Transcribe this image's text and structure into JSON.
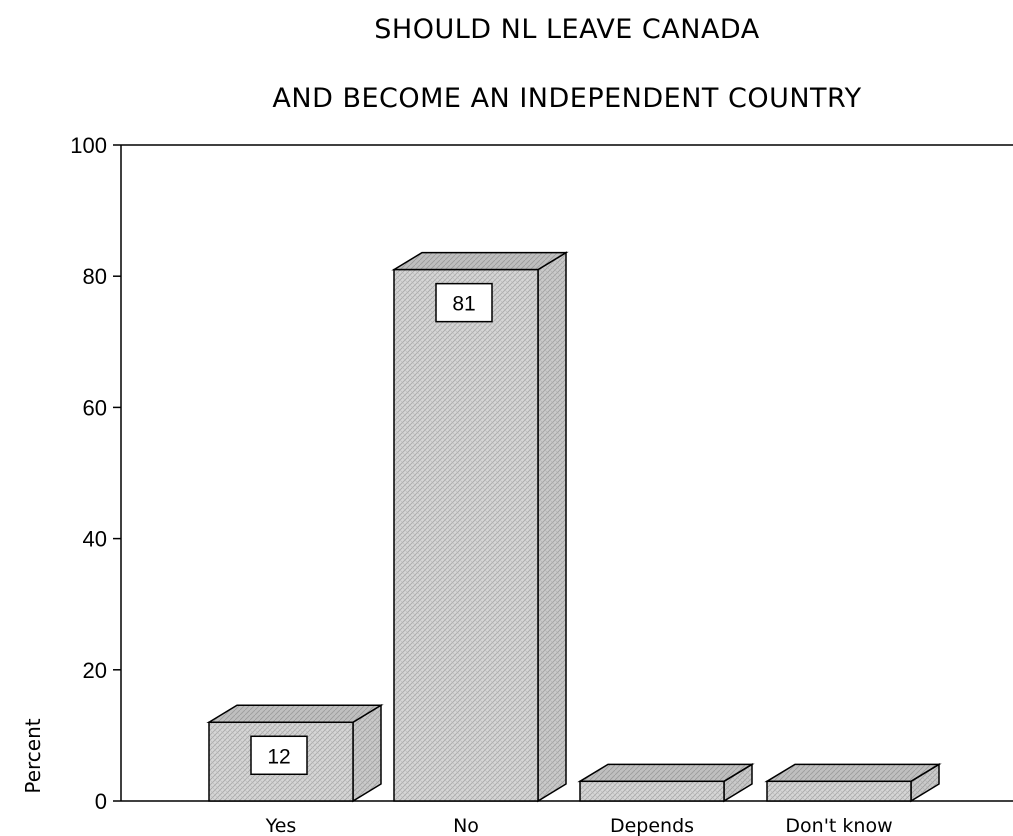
{
  "chart_data": {
    "type": "bar",
    "title_lines": [
      "SHOULD NL LEAVE CANADA",
      "AND BECOME AN INDEPENDENT COUNTRY"
    ],
    "categories": [
      "Yes",
      "No",
      "Depends",
      "Don't know"
    ],
    "values": [
      12,
      81,
      3,
      3
    ],
    "data_labels": [
      "12",
      "81",
      "",
      ""
    ],
    "xlabel": "",
    "ylabel": "Percent",
    "ylim": [
      0,
      100
    ],
    "yticks": [
      "0",
      "20",
      "40",
      "60",
      "80",
      "100"
    ],
    "grid": false,
    "legend": "none",
    "bar_fill": "#d4d4d4",
    "bar_top": "#bdbdbd",
    "bar_side": "#c6c6c6",
    "style": "3d-hatched"
  }
}
